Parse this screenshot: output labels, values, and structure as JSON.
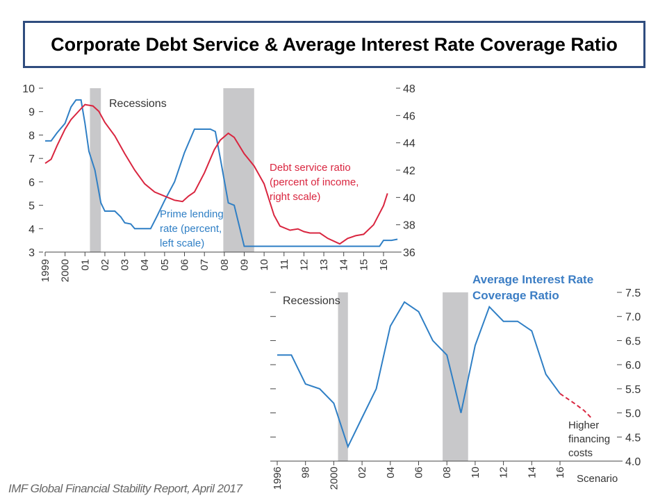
{
  "title": "Corporate Debt Service & Average Interest Rate Coverage Ratio",
  "footer": "IMF Global Financial Stability Report, April 2017",
  "colors": {
    "blue": "#2f7fc5",
    "red": "#d9253f",
    "recession": "#c8c8ca",
    "title_border": "#2f4c7e"
  },
  "chart_data": [
    {
      "type": "line",
      "title": "",
      "recession_label": "Recessions",
      "x_tick_labels": [
        "1999",
        "2000",
        "01",
        "02",
        "03",
        "04",
        "05",
        "06",
        "07",
        "08",
        "09",
        "10",
        "11",
        "12",
        "13",
        "14",
        "15",
        "16"
      ],
      "x_ticks": [
        1999,
        2000,
        2001,
        2002,
        2003,
        2004,
        2005,
        2006,
        2007,
        2008,
        2009,
        2010,
        2011,
        2012,
        2013,
        2014,
        2015,
        2016
      ],
      "xlim": [
        1999,
        2016.9
      ],
      "left_axis": {
        "ylim": [
          3,
          10
        ],
        "ticks": [
          "3",
          "4",
          "5",
          "6",
          "7",
          "8",
          "9",
          "10"
        ]
      },
      "right_axis": {
        "ylim": [
          36,
          48
        ],
        "ticks": [
          "36",
          "38",
          "40",
          "42",
          "44",
          "46",
          "48"
        ]
      },
      "recessions": [
        [
          2001.25,
          2001.8
        ],
        [
          2007.95,
          2009.5
        ]
      ],
      "series": [
        {
          "name": "Prime lending rate (percent, left scale)",
          "label_lines": [
            "Prime lending",
            "rate (percent,",
            "left scale)"
          ],
          "axis": "left",
          "color": "#2f7fc5",
          "x": [
            1999.0,
            1999.3,
            1999.6,
            2000.0,
            2000.3,
            2000.55,
            2000.8,
            2001.0,
            2001.2,
            2001.5,
            2001.8,
            2002.0,
            2002.5,
            2002.8,
            2003.0,
            2003.3,
            2003.5,
            2004.3,
            2004.6,
            2005.0,
            2005.5,
            2006.0,
            2006.5,
            2007.3,
            2007.55,
            2007.8,
            2008.2,
            2008.5,
            2009.0,
            2015.8,
            2016.0,
            2016.4,
            2016.7
          ],
          "y": [
            7.75,
            7.75,
            8.1,
            8.5,
            9.2,
            9.5,
            9.5,
            8.5,
            7.3,
            6.5,
            5.1,
            4.75,
            4.75,
            4.5,
            4.25,
            4.2,
            4.0,
            4.0,
            4.5,
            5.2,
            6.0,
            7.25,
            8.25,
            8.25,
            8.15,
            7.0,
            5.1,
            5.0,
            3.25,
            3.25,
            3.5,
            3.5,
            3.55
          ]
        },
        {
          "name": "Debt service ratio (percent of income, right scale)",
          "label_lines": [
            "Debt service ratio",
            "(percent of income,",
            "right scale)"
          ],
          "axis": "right",
          "color": "#d9253f",
          "x": [
            1999.0,
            1999.3,
            1999.6,
            2000.0,
            2000.3,
            2000.8,
            2001.0,
            2001.4,
            2001.7,
            2002.0,
            2002.5,
            2003.0,
            2003.5,
            2004.0,
            2004.5,
            2005.0,
            2005.5,
            2005.9,
            2006.2,
            2006.5,
            2007.0,
            2007.5,
            2007.8,
            2008.2,
            2008.5,
            2009.0,
            2009.5,
            2010.0,
            2010.5,
            2010.8,
            2011.3,
            2011.7,
            2012.0,
            2012.3,
            2012.8,
            2013.2,
            2013.8,
            2014.2,
            2014.6,
            2015.0,
            2015.5,
            2016.0,
            2016.2
          ],
          "y": [
            42.5,
            42.8,
            43.8,
            45.0,
            45.7,
            46.5,
            46.8,
            46.7,
            46.3,
            45.5,
            44.5,
            43.2,
            42.0,
            41.0,
            40.4,
            40.1,
            39.8,
            39.7,
            40.1,
            40.4,
            41.8,
            43.5,
            44.2,
            44.7,
            44.4,
            43.2,
            42.3,
            41.0,
            38.7,
            37.9,
            37.6,
            37.7,
            37.5,
            37.4,
            37.4,
            37.0,
            36.6,
            37.0,
            37.2,
            37.3,
            38.0,
            39.4,
            40.3
          ]
        }
      ]
    },
    {
      "type": "line",
      "title": "Average Interest Rate Coverage Ratio",
      "title_lines": [
        "Average Interest Rate",
        "Coverage Ratio"
      ],
      "recession_label": "Recessions",
      "x_tick_labels": [
        "1996",
        "98",
        "2000",
        "02",
        "04",
        "06",
        "08",
        "10",
        "12",
        "14",
        "16"
      ],
      "x_ticks": [
        1996,
        1998,
        2000,
        2002,
        2004,
        2006,
        2008,
        2010,
        2012,
        2014,
        2016
      ],
      "x_extra_label": "Scenario",
      "xlim": [
        1996,
        2018.2
      ],
      "ylim": [
        4.0,
        7.5
      ],
      "y_ticks": [
        "4.0",
        "4.5",
        "5.0",
        "5.5",
        "6.0",
        "6.5",
        "7.0",
        "7.5"
      ],
      "recessions": [
        [
          2000.3,
          2001.0
        ],
        [
          2007.7,
          2009.5
        ]
      ],
      "annotation_lines": [
        "Higher",
        "financing",
        "costs"
      ],
      "series": [
        {
          "name": "Interest rate coverage ratio",
          "color": "#2f7fc5",
          "style": "solid",
          "x": [
            1996,
            1997,
            1998,
            1999,
            2000,
            2001,
            2002,
            2003,
            2004,
            2005,
            2006,
            2007,
            2008,
            2009,
            2010,
            2011,
            2012,
            2013,
            2014,
            2015,
            2016
          ],
          "y": [
            6.2,
            6.2,
            5.6,
            5.5,
            5.2,
            4.3,
            4.9,
            5.5,
            6.8,
            7.3,
            7.1,
            6.5,
            6.2,
            5.0,
            6.4,
            7.2,
            6.9,
            6.9,
            6.7,
            5.8,
            5.4
          ]
        },
        {
          "name": "Higher financing costs scenario",
          "color": "#d9253f",
          "style": "dashed",
          "x": [
            2016,
            2017,
            2017.7,
            2018.2
          ],
          "y": [
            5.4,
            5.2,
            5.05,
            4.9
          ]
        }
      ]
    }
  ]
}
